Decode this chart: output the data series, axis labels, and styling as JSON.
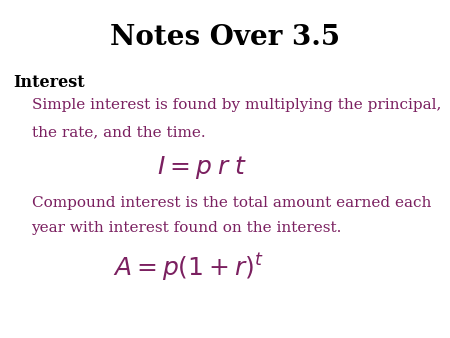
{
  "title": "Notes Over 3.5",
  "title_fontsize": 20,
  "title_color": "#000000",
  "background_color": "#ffffff",
  "section_label": "Interest",
  "section_label_color": "#000000",
  "section_label_fontsize": 11.5,
  "text_color": "#7B2060",
  "text_fontsize": 11,
  "formula_fontsize": 18,
  "simple_line1": "Simple interest is found by multiplying the principal,",
  "simple_line2": "the rate, and the time.",
  "formula1": "$I = p\\;r\\;t$",
  "compound_line1": "Compound interest is the total amount earned each",
  "compound_line2": "year with interest found on the interest.",
  "formula2": "$A = p\\left(1+r\\right)^{t}$"
}
